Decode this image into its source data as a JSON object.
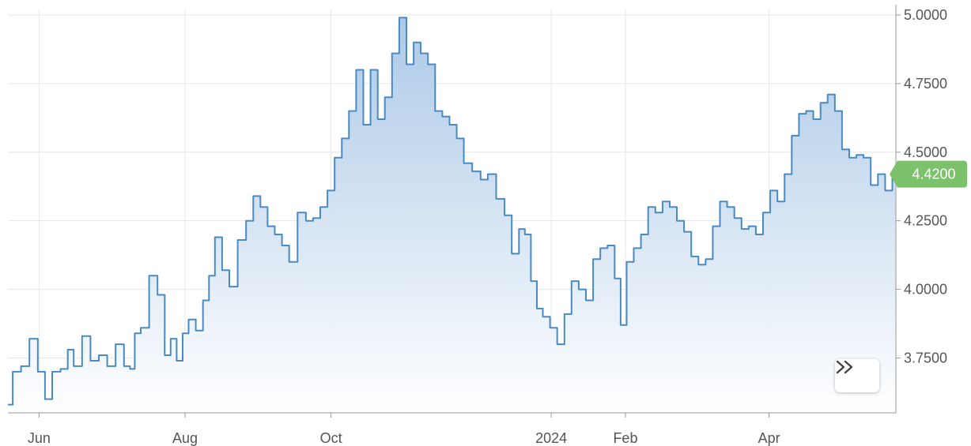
{
  "chart_data": {
    "type": "area",
    "y_ticks": [
      "3.7500",
      "4.0000",
      "4.2500",
      "4.5000",
      "4.7500",
      "5.0000"
    ],
    "y_tick_values": [
      3.75,
      4.0,
      4.25,
      4.5,
      4.75,
      5.0
    ],
    "ylim": [
      3.55,
      5.02
    ],
    "x_ticks": [
      {
        "label": "Jun",
        "date": "2023-06-01"
      },
      {
        "label": "Aug",
        "date": "2023-08-01"
      },
      {
        "label": "Oct",
        "date": "2023-10-01"
      },
      {
        "label": "2024",
        "date": "2024-01-01"
      },
      {
        "label": "Feb",
        "date": "2024-02-01"
      },
      {
        "label": "Apr",
        "date": "2024-04-01"
      }
    ],
    "xlim": [
      "2023-05-19",
      "2024-05-24"
    ],
    "last_value_label": "4.4200",
    "grid": true,
    "colors": {
      "line": "#4a8ac4",
      "area_top": "#a9c7e6",
      "area_bottom": "#ffffff",
      "badge": "#7cc26a",
      "grid": "#e6e6e6"
    },
    "series": [
      {
        "points": [
          [
            "2023-05-19",
            3.58
          ],
          [
            "2023-05-23",
            3.7
          ],
          [
            "2023-05-26",
            3.72
          ],
          [
            "2023-05-30",
            3.82
          ],
          [
            "2023-06-02",
            3.7
          ],
          [
            "2023-06-05",
            3.6
          ],
          [
            "2023-06-08",
            3.7
          ],
          [
            "2023-06-12",
            3.71
          ],
          [
            "2023-06-14",
            3.78
          ],
          [
            "2023-06-17",
            3.72
          ],
          [
            "2023-06-21",
            3.83
          ],
          [
            "2023-06-24",
            3.74
          ],
          [
            "2023-06-28",
            3.76
          ],
          [
            "2023-07-01",
            3.72
          ],
          [
            "2023-07-05",
            3.8
          ],
          [
            "2023-07-08",
            3.72
          ],
          [
            "2023-07-10",
            3.71
          ],
          [
            "2023-07-12",
            3.84
          ],
          [
            "2023-07-15",
            3.86
          ],
          [
            "2023-07-19",
            4.05
          ],
          [
            "2023-07-22",
            3.98
          ],
          [
            "2023-07-25",
            3.76
          ],
          [
            "2023-07-27",
            3.82
          ],
          [
            "2023-07-30",
            3.74
          ],
          [
            "2023-08-01",
            3.84
          ],
          [
            "2023-08-04",
            3.89
          ],
          [
            "2023-08-07",
            3.85
          ],
          [
            "2023-08-10",
            3.96
          ],
          [
            "2023-08-12",
            4.05
          ],
          [
            "2023-08-15",
            4.19
          ],
          [
            "2023-08-18",
            4.07
          ],
          [
            "2023-08-21",
            4.01
          ],
          [
            "2023-08-25",
            4.18
          ],
          [
            "2023-08-28",
            4.25
          ],
          [
            "2023-08-31",
            4.34
          ],
          [
            "2023-09-03",
            4.3
          ],
          [
            "2023-09-06",
            4.23
          ],
          [
            "2023-09-09",
            4.2
          ],
          [
            "2023-09-12",
            4.16
          ],
          [
            "2023-09-15",
            4.1
          ],
          [
            "2023-09-19",
            4.28
          ],
          [
            "2023-09-22",
            4.25
          ],
          [
            "2023-09-25",
            4.26
          ],
          [
            "2023-09-28",
            4.3
          ],
          [
            "2023-10-01",
            4.36
          ],
          [
            "2023-10-04",
            4.48
          ],
          [
            "2023-10-07",
            4.55
          ],
          [
            "2023-10-10",
            4.65
          ],
          [
            "2023-10-13",
            4.8
          ],
          [
            "2023-10-16",
            4.6
          ],
          [
            "2023-10-19",
            4.8
          ],
          [
            "2023-10-22",
            4.62
          ],
          [
            "2023-10-25",
            4.7
          ],
          [
            "2023-10-28",
            4.86
          ],
          [
            "2023-10-31",
            4.99
          ],
          [
            "2023-11-03",
            4.82
          ],
          [
            "2023-11-06",
            4.9
          ],
          [
            "2023-11-09",
            4.86
          ],
          [
            "2023-11-12",
            4.82
          ],
          [
            "2023-11-15",
            4.65
          ],
          [
            "2023-11-18",
            4.63
          ],
          [
            "2023-11-21",
            4.6
          ],
          [
            "2023-11-24",
            4.55
          ],
          [
            "2023-11-27",
            4.46
          ],
          [
            "2023-12-01",
            4.43
          ],
          [
            "2023-12-04",
            4.4
          ],
          [
            "2023-12-07",
            4.42
          ],
          [
            "2023-12-11",
            4.33
          ],
          [
            "2023-12-14",
            4.27
          ],
          [
            "2023-12-17",
            4.13
          ],
          [
            "2023-12-20",
            4.22
          ],
          [
            "2023-12-22",
            4.2
          ],
          [
            "2023-12-25",
            4.03
          ],
          [
            "2023-12-27",
            3.93
          ],
          [
            "2023-12-30",
            3.9
          ],
          [
            "2024-01-02",
            3.86
          ],
          [
            "2024-01-05",
            3.8
          ],
          [
            "2024-01-08",
            3.91
          ],
          [
            "2024-01-11",
            4.03
          ],
          [
            "2024-01-14",
            4.0
          ],
          [
            "2024-01-17",
            3.96
          ],
          [
            "2024-01-20",
            4.11
          ],
          [
            "2024-01-23",
            4.15
          ],
          [
            "2024-01-26",
            4.16
          ],
          [
            "2024-01-29",
            4.04
          ],
          [
            "2024-01-31",
            3.87
          ],
          [
            "2024-02-03",
            4.1
          ],
          [
            "2024-02-06",
            4.15
          ],
          [
            "2024-02-09",
            4.2
          ],
          [
            "2024-02-12",
            4.3
          ],
          [
            "2024-02-15",
            4.28
          ],
          [
            "2024-02-18",
            4.32
          ],
          [
            "2024-02-21",
            4.3
          ],
          [
            "2024-02-24",
            4.25
          ],
          [
            "2024-02-27",
            4.21
          ],
          [
            "2024-03-01",
            4.12
          ],
          [
            "2024-03-04",
            4.09
          ],
          [
            "2024-03-07",
            4.11
          ],
          [
            "2024-03-10",
            4.23
          ],
          [
            "2024-03-13",
            4.32
          ],
          [
            "2024-03-16",
            4.3
          ],
          [
            "2024-03-19",
            4.26
          ],
          [
            "2024-03-22",
            4.22
          ],
          [
            "2024-03-25",
            4.23
          ],
          [
            "2024-03-28",
            4.2
          ],
          [
            "2024-03-31",
            4.28
          ],
          [
            "2024-04-03",
            4.36
          ],
          [
            "2024-04-06",
            4.32
          ],
          [
            "2024-04-09",
            4.42
          ],
          [
            "2024-04-12",
            4.56
          ],
          [
            "2024-04-15",
            4.64
          ],
          [
            "2024-04-18",
            4.65
          ],
          [
            "2024-04-21",
            4.62
          ],
          [
            "2024-04-24",
            4.68
          ],
          [
            "2024-04-27",
            4.71
          ],
          [
            "2024-04-30",
            4.65
          ],
          [
            "2024-05-03",
            4.51
          ],
          [
            "2024-05-06",
            4.48
          ],
          [
            "2024-05-09",
            4.49
          ],
          [
            "2024-05-12",
            4.48
          ],
          [
            "2024-05-15",
            4.38
          ],
          [
            "2024-05-18",
            4.42
          ],
          [
            "2024-05-21",
            4.36
          ],
          [
            "2024-05-24",
            4.42
          ]
        ]
      }
    ]
  }
}
